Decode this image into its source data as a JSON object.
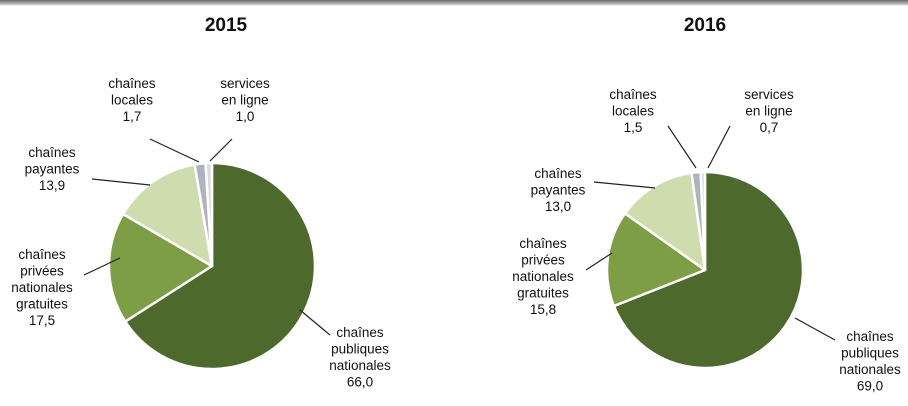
{
  "colors": {
    "chaines_publiques": "#4d6a2c",
    "chaines_privees": "#7e9e45",
    "chaines_payantes": "#cfdcae",
    "chaines_locales": "#aeb3bd",
    "services_en_ligne": "#d9dbe1"
  },
  "chart_data": [
    {
      "type": "pie",
      "title": "2015",
      "slices": [
        {
          "key": "chaines_publiques",
          "label": [
            "chaînes",
            "publiques",
            "nationales"
          ],
          "value": 66.0,
          "value_text": "66,0"
        },
        {
          "key": "chaines_privees",
          "label": [
            "chaînes",
            "privées",
            "nationales",
            "gratuites"
          ],
          "value": 17.5,
          "value_text": "17,5"
        },
        {
          "key": "chaines_payantes",
          "label": [
            "chaînes",
            "payantes"
          ],
          "value": 13.9,
          "value_text": "13,9"
        },
        {
          "key": "chaines_locales",
          "label": [
            "chaînes",
            "locales"
          ],
          "value": 1.7,
          "value_text": "1,7"
        },
        {
          "key": "services_en_ligne",
          "label": [
            "services",
            "en ligne"
          ],
          "value": 1.0,
          "value_text": "1,0"
        }
      ]
    },
    {
      "type": "pie",
      "title": "2016",
      "slices": [
        {
          "key": "chaines_publiques",
          "label": [
            "chaînes",
            "publiques",
            "nationales"
          ],
          "value": 69.0,
          "value_text": "69,0"
        },
        {
          "key": "chaines_privees",
          "label": [
            "chaînes",
            "privées",
            "nationales",
            "gratuites"
          ],
          "value": 15.8,
          "value_text": "15,8"
        },
        {
          "key": "chaines_payantes",
          "label": [
            "chaînes",
            "payantes"
          ],
          "value": 13.0,
          "value_text": "13,0"
        },
        {
          "key": "chaines_locales",
          "label": [
            "chaînes",
            "locales"
          ],
          "value": 1.5,
          "value_text": "1,5"
        },
        {
          "key": "services_en_ligne",
          "label": [
            "services",
            "en ligne"
          ],
          "value": 0.7,
          "value_text": "0,7"
        }
      ]
    }
  ]
}
